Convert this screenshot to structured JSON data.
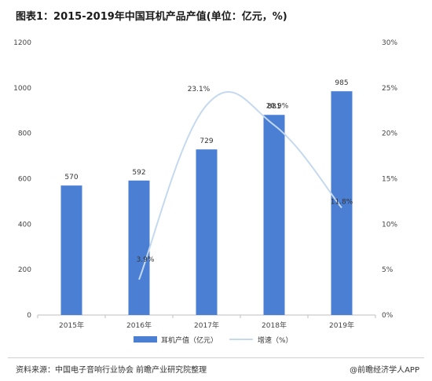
{
  "title": "图表1：2015-2019年中国耳机产品产值(单位：亿元，%)",
  "footer": {
    "source": "资料来源：中国电子音响行业协会 前瞻产业研究院整理",
    "brand": "@前瞻经济学人APP"
  },
  "colors": {
    "bar": "#4a7fd4",
    "line": "#c5d9ee"
  },
  "chart_data": {
    "type": "bar",
    "title": "图表1：2015-2019年中国耳机产品产值(单位：亿元，%)",
    "categories": [
      "2015年",
      "2016年",
      "2017年",
      "2018年",
      "2019年"
    ],
    "series": [
      {
        "name": "耳机产值（亿元）",
        "type": "bar",
        "axis": "left",
        "values": [
          570,
          592,
          729,
          881,
          985
        ],
        "labels": [
          "570",
          "592",
          "729",
          "881",
          "985"
        ]
      },
      {
        "name": "增速（%）",
        "type": "line",
        "axis": "right",
        "values": [
          null,
          3.9,
          23.1,
          20.9,
          11.8
        ],
        "labels": [
          "",
          "3.9%",
          "23.1%",
          "20.9%",
          "11.8%"
        ]
      }
    ],
    "y_left": {
      "min": 0,
      "max": 1200,
      "ticks": [
        "0",
        "200",
        "400",
        "600",
        "800",
        "1000",
        "1200"
      ]
    },
    "y_right": {
      "min": 0,
      "max": 30,
      "ticks": [
        "0%",
        "5%",
        "10%",
        "15%",
        "20%",
        "25%",
        "30%"
      ]
    },
    "legend": "bottom",
    "grid": false
  }
}
